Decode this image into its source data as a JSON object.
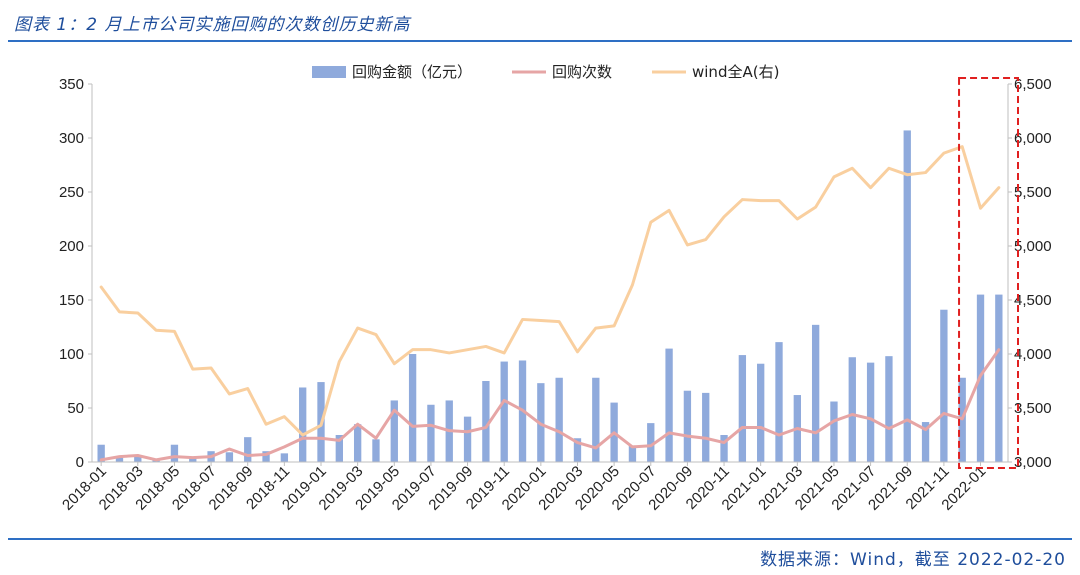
{
  "title": "图表 1：2 月上市公司实施回购的次数创历史新高",
  "source": "数据来源：Wind，截至 2022-02-20",
  "colors": {
    "bar": "#8faadc",
    "count_line": "#e6a5a5",
    "index_line": "#f9cf9f",
    "accent": "#2e6fc4",
    "highlight": "#e02020"
  },
  "chart_data": {
    "type": "bar",
    "categories": [
      "2018-01",
      "2018-02",
      "2018-03",
      "2018-04",
      "2018-05",
      "2018-06",
      "2018-07",
      "2018-08",
      "2018-09",
      "2018-10",
      "2018-11",
      "2018-12",
      "2019-01",
      "2019-02",
      "2019-03",
      "2019-04",
      "2019-05",
      "2019-06",
      "2019-07",
      "2019-08",
      "2019-09",
      "2019-10",
      "2019-11",
      "2019-12",
      "2020-01",
      "2020-02",
      "2020-03",
      "2020-04",
      "2020-05",
      "2020-06",
      "2020-07",
      "2020-08",
      "2020-09",
      "2020-10",
      "2020-11",
      "2020-12",
      "2021-01",
      "2021-02",
      "2021-03",
      "2021-04",
      "2021-05",
      "2021-06",
      "2021-07",
      "2021-08",
      "2021-09",
      "2021-10",
      "2021-11",
      "2021-12",
      "2022-01",
      "2022-02"
    ],
    "x_tick_labels": [
      "2018-01",
      "2018-03",
      "2018-05",
      "2018-07",
      "2018-09",
      "2018-11",
      "2019-01",
      "2019-03",
      "2019-05",
      "2019-07",
      "2019-09",
      "2019-11",
      "2020-01",
      "2020-03",
      "2020-05",
      "2020-07",
      "2020-09",
      "2020-11",
      "2021-01",
      "2021-03",
      "2021-05",
      "2021-07",
      "2021-09",
      "2021-11",
      "2022-01"
    ],
    "series": [
      {
        "name": "回购金额（亿元）",
        "type": "bar",
        "axis": "left",
        "values": [
          16,
          4,
          5,
          2,
          16,
          4,
          10,
          9,
          23,
          10,
          8,
          69,
          74,
          25,
          35,
          21,
          57,
          100,
          53,
          57,
          42,
          75,
          93,
          94,
          73,
          78,
          22,
          78,
          55,
          15,
          36,
          105,
          66,
          64,
          25,
          99,
          91,
          111,
          62,
          127,
          56,
          97,
          92,
          98,
          307,
          37,
          141,
          78,
          155,
          155
        ]
      },
      {
        "name": "回购次数",
        "type": "line",
        "axis": "left",
        "values": [
          2,
          5,
          6,
          2,
          5,
          4,
          5,
          12,
          6,
          7,
          14,
          22,
          22,
          20,
          35,
          22,
          48,
          33,
          34,
          29,
          28,
          32,
          57,
          48,
          35,
          28,
          18,
          13,
          27,
          14,
          15,
          27,
          24,
          22,
          18,
          32,
          32,
          25,
          31,
          27,
          38,
          44,
          40,
          31,
          39,
          30,
          45,
          40,
          80,
          104
        ]
      },
      {
        "name": "wind全A(右)",
        "type": "line",
        "axis": "right",
        "values": [
          4620,
          4390,
          4380,
          4220,
          4210,
          3860,
          3870,
          3630,
          3680,
          3350,
          3420,
          3250,
          3340,
          3930,
          4240,
          4180,
          3910,
          4040,
          4040,
          4010,
          4040,
          4070,
          4010,
          4320,
          4310,
          4300,
          4020,
          4240,
          4260,
          4640,
          5220,
          5330,
          5010,
          5060,
          5270,
          5430,
          5420,
          5420,
          5250,
          5360,
          5640,
          5720,
          5540,
          5720,
          5660,
          5680,
          5860,
          5920,
          5350,
          5540
        ]
      }
    ],
    "ylim_left": [
      0,
      350
    ],
    "ylim_right": [
      3000,
      6500
    ],
    "y_ticks_left": [
      "0",
      "50",
      "100",
      "150",
      "200",
      "250",
      "300",
      "350"
    ],
    "y_ticks_right": [
      "3,000",
      "3,500",
      "4,000",
      "4,500",
      "5,000",
      "5,500",
      "6,000",
      "6,500"
    ],
    "legend_position": "top",
    "grid": false,
    "highlight_last_n": 3
  }
}
